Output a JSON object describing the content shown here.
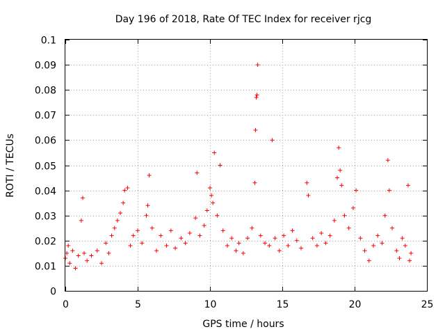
{
  "chart_data": {
    "type": "scatter",
    "title": "Day 196 of 2018, Rate Of TEC Index for receiver rjcg",
    "xlabel": "GPS time / hours",
    "ylabel": "ROTI / TECUs",
    "xlim": [
      0,
      25
    ],
    "ylim": [
      0,
      0.1
    ],
    "x_ticks": [
      "0",
      "5",
      "10",
      "15",
      "20",
      "25"
    ],
    "y_ticks": [
      "0",
      "0.01",
      "0.02",
      "0.03",
      "0.04",
      "0.05",
      "0.06",
      "0.07",
      "0.08",
      "0.09",
      "0.1"
    ],
    "grid": true,
    "marker": "+",
    "series_color": "#ff0000",
    "series": [
      {
        "name": "ROTI",
        "points": [
          [
            0.0,
            0.013
          ],
          [
            0.1,
            0.015
          ],
          [
            0.2,
            0.018
          ],
          [
            0.3,
            0.011
          ],
          [
            0.5,
            0.016
          ],
          [
            0.7,
            0.009
          ],
          [
            0.9,
            0.014
          ],
          [
            1.1,
            0.028
          ],
          [
            1.2,
            0.037
          ],
          [
            1.3,
            0.015
          ],
          [
            1.5,
            0.012
          ],
          [
            1.8,
            0.014
          ],
          [
            2.2,
            0.016
          ],
          [
            2.5,
            0.011
          ],
          [
            2.8,
            0.019
          ],
          [
            3.0,
            0.015
          ],
          [
            3.2,
            0.022
          ],
          [
            3.4,
            0.025
          ],
          [
            3.6,
            0.028
          ],
          [
            3.8,
            0.031
          ],
          [
            4.0,
            0.035
          ],
          [
            4.1,
            0.04
          ],
          [
            4.3,
            0.041
          ],
          [
            4.5,
            0.018
          ],
          [
            4.7,
            0.022
          ],
          [
            5.0,
            0.024
          ],
          [
            5.3,
            0.019
          ],
          [
            5.6,
            0.03
          ],
          [
            5.7,
            0.034
          ],
          [
            5.8,
            0.046
          ],
          [
            6.0,
            0.025
          ],
          [
            6.3,
            0.016
          ],
          [
            6.6,
            0.022
          ],
          [
            7.0,
            0.018
          ],
          [
            7.3,
            0.024
          ],
          [
            7.6,
            0.017
          ],
          [
            8.0,
            0.021
          ],
          [
            8.3,
            0.019
          ],
          [
            8.6,
            0.023
          ],
          [
            9.0,
            0.029
          ],
          [
            9.1,
            0.047
          ],
          [
            9.3,
            0.022
          ],
          [
            9.6,
            0.026
          ],
          [
            9.8,
            0.032
          ],
          [
            10.0,
            0.041
          ],
          [
            10.1,
            0.038
          ],
          [
            10.2,
            0.035
          ],
          [
            10.3,
            0.055
          ],
          [
            10.5,
            0.03
          ],
          [
            10.7,
            0.05
          ],
          [
            10.9,
            0.024
          ],
          [
            11.2,
            0.018
          ],
          [
            11.5,
            0.021
          ],
          [
            11.8,
            0.016
          ],
          [
            12.0,
            0.019
          ],
          [
            12.3,
            0.015
          ],
          [
            12.6,
            0.021
          ],
          [
            12.9,
            0.025
          ],
          [
            13.1,
            0.043
          ],
          [
            13.15,
            0.064
          ],
          [
            13.2,
            0.077
          ],
          [
            13.25,
            0.078
          ],
          [
            13.3,
            0.09
          ],
          [
            13.5,
            0.022
          ],
          [
            13.8,
            0.019
          ],
          [
            14.1,
            0.018
          ],
          [
            14.3,
            0.06
          ],
          [
            14.5,
            0.021
          ],
          [
            14.8,
            0.016
          ],
          [
            15.1,
            0.022
          ],
          [
            15.4,
            0.018
          ],
          [
            15.7,
            0.024
          ],
          [
            16.0,
            0.02
          ],
          [
            16.3,
            0.017
          ],
          [
            16.7,
            0.043
          ],
          [
            16.8,
            0.038
          ],
          [
            17.1,
            0.021
          ],
          [
            17.4,
            0.018
          ],
          [
            17.7,
            0.023
          ],
          [
            18.0,
            0.019
          ],
          [
            18.3,
            0.022
          ],
          [
            18.6,
            0.028
          ],
          [
            18.8,
            0.045
          ],
          [
            18.9,
            0.057
          ],
          [
            19.0,
            0.048
          ],
          [
            19.1,
            0.042
          ],
          [
            19.3,
            0.03
          ],
          [
            19.6,
            0.025
          ],
          [
            19.9,
            0.033
          ],
          [
            20.1,
            0.04
          ],
          [
            20.4,
            0.021
          ],
          [
            20.7,
            0.016
          ],
          [
            21.0,
            0.012
          ],
          [
            21.3,
            0.018
          ],
          [
            21.6,
            0.022
          ],
          [
            21.9,
            0.019
          ],
          [
            22.1,
            0.03
          ],
          [
            22.3,
            0.052
          ],
          [
            22.4,
            0.04
          ],
          [
            22.6,
            0.025
          ],
          [
            22.9,
            0.016
          ],
          [
            23.1,
            0.013
          ],
          [
            23.3,
            0.021
          ],
          [
            23.5,
            0.018
          ],
          [
            23.7,
            0.042
          ],
          [
            23.8,
            0.012
          ],
          [
            23.9,
            0.015
          ]
        ]
      }
    ]
  }
}
